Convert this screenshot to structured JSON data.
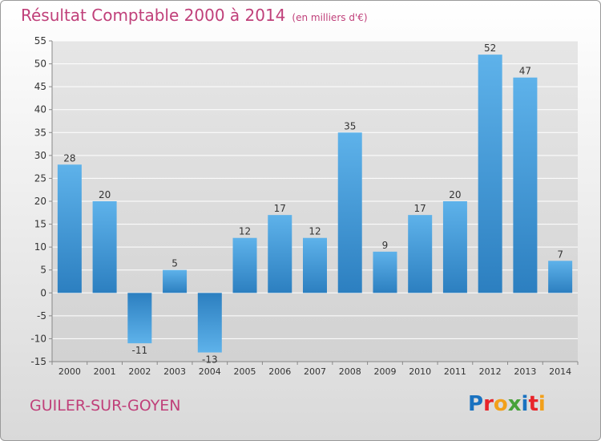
{
  "header": {
    "title": "Résultat Comptable 2000 à 2014",
    "subtitle": "(en milliers d'€)"
  },
  "footer": {
    "place": "GUILER-SUR-GOYEN",
    "brand": "Proxiti",
    "brand_colors": [
      "#1a72c0",
      "#e8242a",
      "#f2a01a",
      "#47a23a",
      "#1a72c0",
      "#e8242a",
      "#f2a01a"
    ]
  },
  "colors": {
    "title": "#c0407a",
    "bar_light": "#5eb2ea",
    "bar_dark": "#2c7fc0",
    "grid": "#ffffff",
    "axis": "#888888",
    "text": "#333333"
  },
  "chart_data": {
    "type": "bar",
    "title": "Résultat Comptable 2000 à 2014",
    "subtitle": "(en milliers d'€)",
    "xlabel": "",
    "ylabel": "",
    "ylim": [
      -15,
      55
    ],
    "yticks": [
      -15,
      -10,
      -5,
      0,
      5,
      10,
      15,
      20,
      25,
      30,
      35,
      40,
      45,
      50,
      55
    ],
    "grid": true,
    "categories": [
      "2000",
      "2001",
      "2002",
      "2003",
      "2004",
      "2005",
      "2006",
      "2007",
      "2008",
      "2009",
      "2010",
      "2011",
      "2012",
      "2013",
      "2014"
    ],
    "values": [
      28,
      20,
      -11,
      5,
      -13,
      12,
      17,
      12,
      35,
      9,
      17,
      20,
      52,
      47,
      7
    ],
    "value_labels": [
      "28",
      "20",
      "-11",
      "5",
      "-13",
      "12",
      "17",
      "12",
      "35",
      "9",
      "17",
      "20",
      "52",
      "47",
      "7"
    ]
  }
}
